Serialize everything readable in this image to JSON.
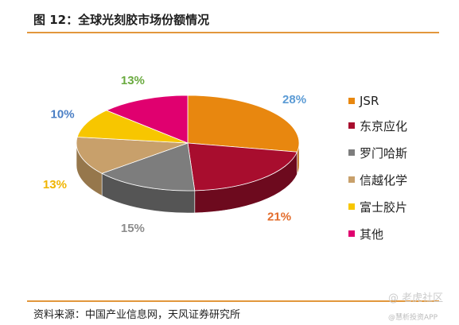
{
  "title": "图 12：全球光刻胶市场份额情况",
  "source": "资料来源：中国产业信息网，天风证券研究所",
  "watermark": {
    "line1": "@ 老虎社区",
    "line2": "@慧析投资APP"
  },
  "chart_data": {
    "type": "pie",
    "title": "图 12：全球光刻胶市场份额情况",
    "unit": "%",
    "legend_position": "right",
    "slices": [
      {
        "label": "JSR",
        "value": 28,
        "value_label": "28%",
        "color": "#e8870f",
        "side_color": "#b8650a",
        "label_color": "#5b9bd5"
      },
      {
        "label": "东京应化",
        "value": 21,
        "value_label": "21%",
        "color": "#a80d2e",
        "side_color": "#6d0a1e",
        "label_color": "#e36c2b"
      },
      {
        "label": "罗门哈斯",
        "value": 15,
        "value_label": "15%",
        "color": "#7d7d7d",
        "side_color": "#555555",
        "label_color": "#8c8c8c"
      },
      {
        "label": "信越化学",
        "value": 13,
        "value_label": "13%",
        "color": "#c8a06b",
        "side_color": "#96774c",
        "label_color": "#f0b400"
      },
      {
        "label": "富士胶片",
        "value": 10,
        "value_label": "10%",
        "color": "#f7c600",
        "side_color": "#bf9900",
        "label_color": "#4b7fc5"
      },
      {
        "label": "其他",
        "value": 13,
        "value_label": "13%",
        "color": "#e0006f",
        "side_color": "#a50052",
        "label_color": "#6aaa3f"
      }
    ]
  }
}
